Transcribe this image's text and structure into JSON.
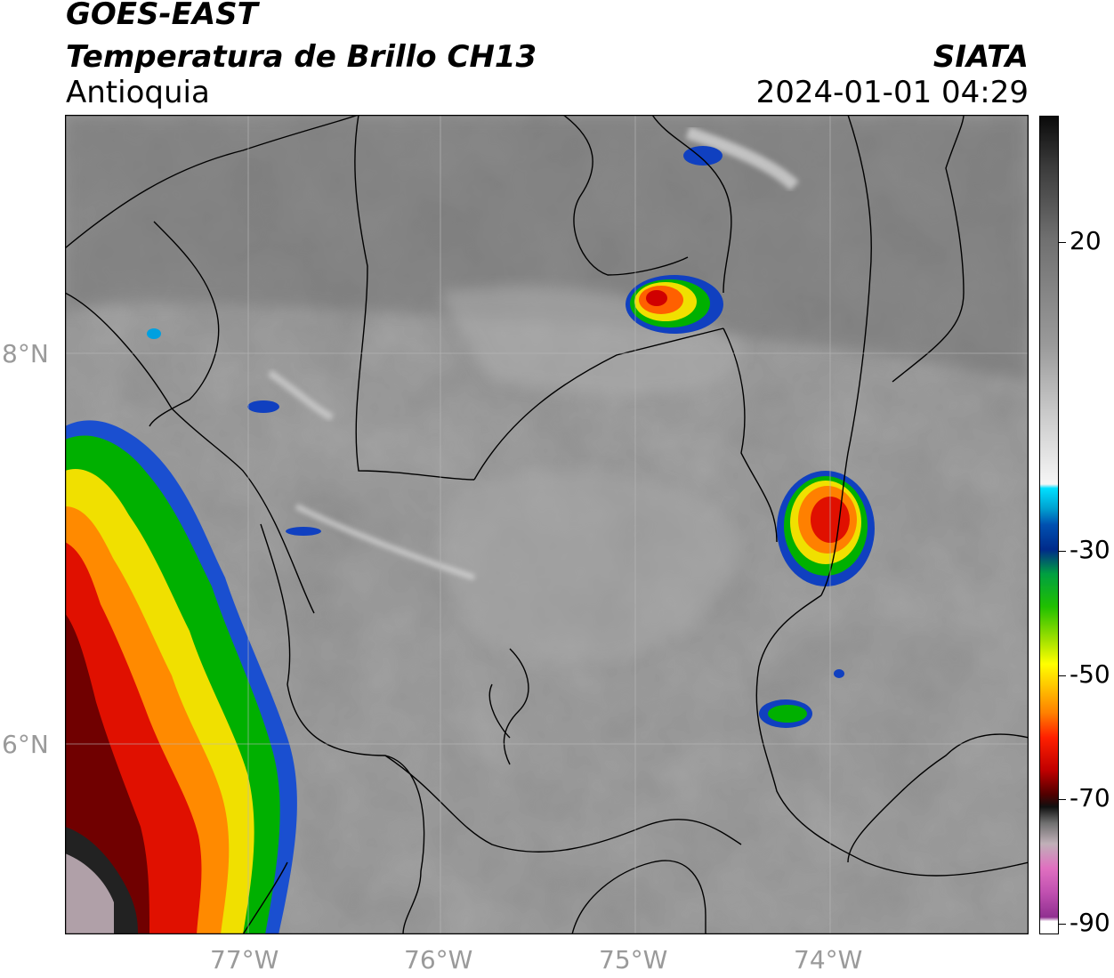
{
  "header": {
    "satellite": "GOES-EAST",
    "product": "Temperatura de Brillo CH13",
    "region": "Antioquia",
    "organization": "SIATA",
    "datetime": "2024-01-01 04:29"
  },
  "map": {
    "lat_labels": [
      "8°N",
      "6°N"
    ],
    "lon_labels": [
      "77°W",
      "76°W",
      "75°W",
      "74°W"
    ]
  },
  "colorbar": {
    "tick_labels": [
      "20",
      "-30",
      "-50",
      "-70",
      "-90"
    ],
    "colors": {
      "warm_black": "#111111",
      "gray_mid": "#8a8a8a",
      "white": "#f4f4f4",
      "cyan": "#00d0ff",
      "blue": "#003a9a",
      "green": "#00c000",
      "yellow": "#ffff00",
      "orange": "#ff8800",
      "red": "#dd0000",
      "dark_red": "#400000",
      "pink": "#e070c0",
      "purple": "#903090"
    }
  }
}
